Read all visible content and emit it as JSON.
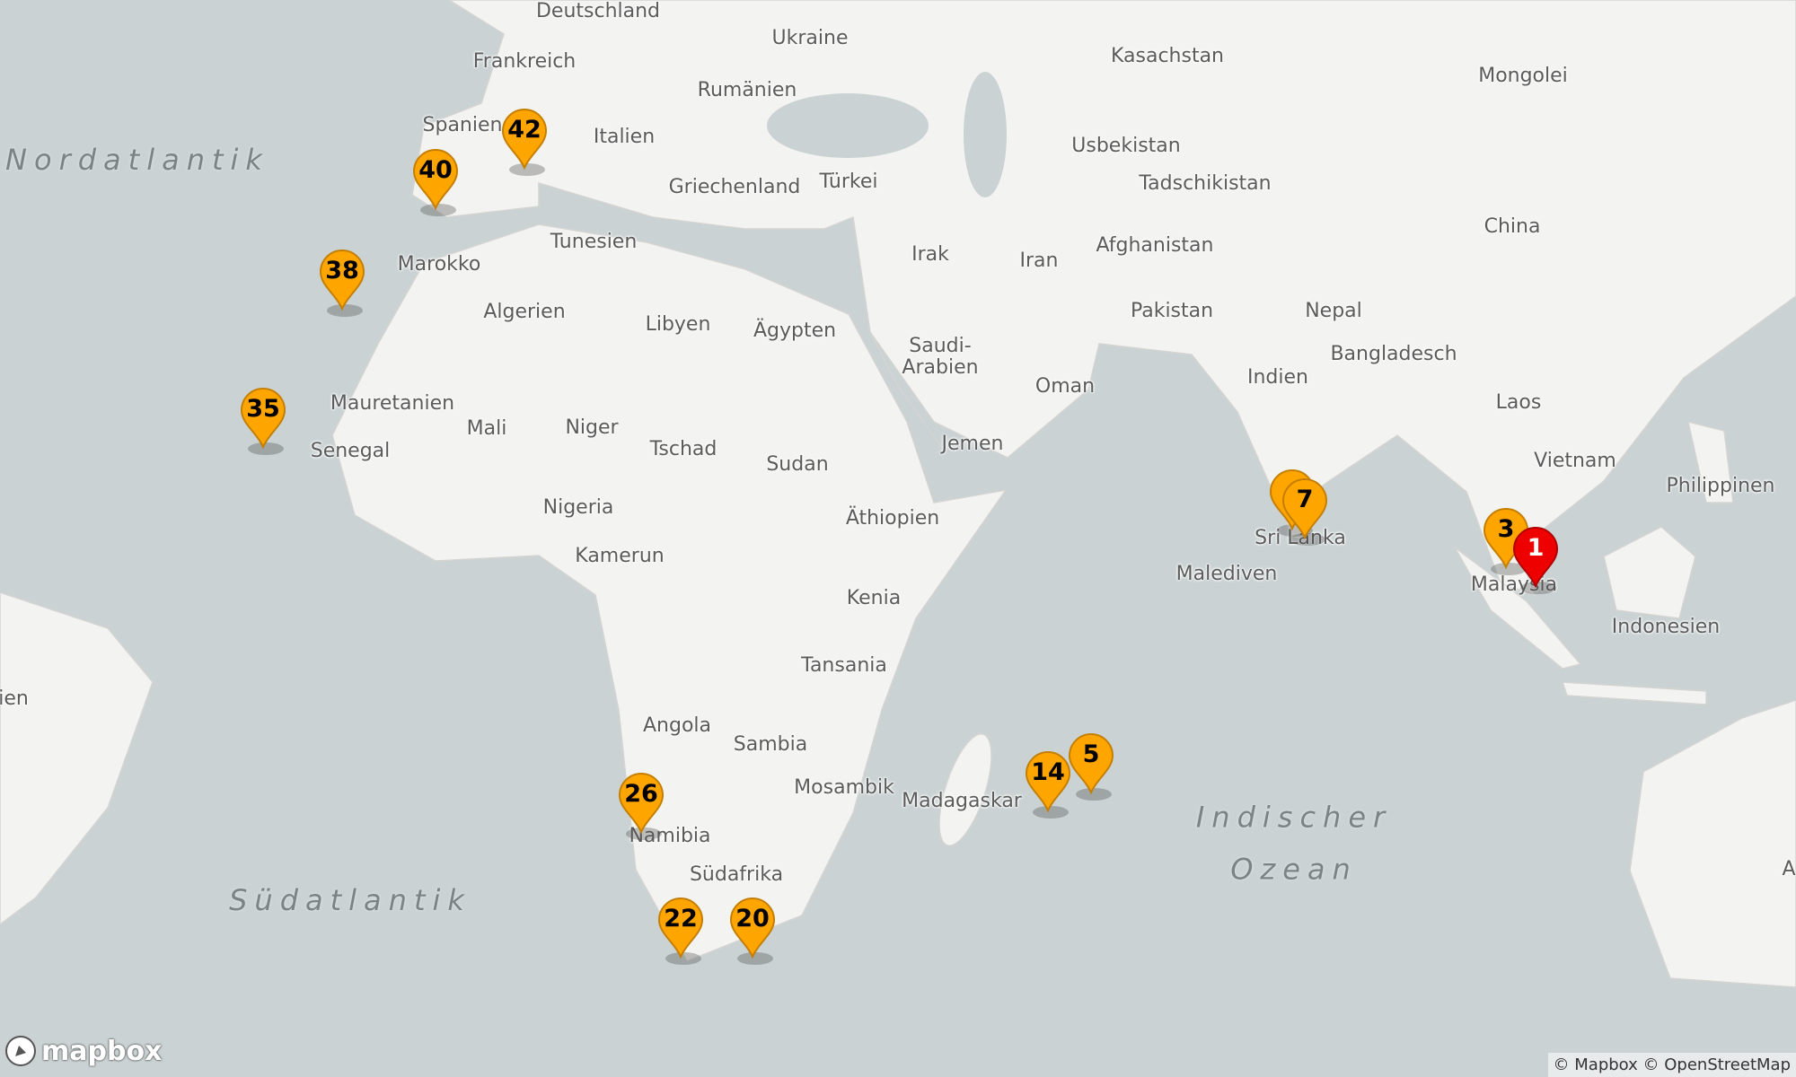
{
  "colors": {
    "water": "#cad2d3",
    "land": "#f3f3f1",
    "border": "#c4c4c4",
    "marker": "#ffa500",
    "marker_selected": "#ee0000"
  },
  "countries": [
    "Deutschland",
    "Ukraine",
    "Kasachstan",
    "Mongolei",
    "Frankreich",
    "Rumänien",
    "Italien",
    "Spanien",
    "Usbekistan",
    "Tadschikistan",
    "Griechenland",
    "Türkei",
    "China",
    "Tunesien",
    "Marokko",
    "Irak",
    "Iran",
    "Afghanistan",
    "Algerien",
    "Libyen",
    "Ägypten",
    "Pakistan",
    "Nepal",
    "Saudi-\nArabien",
    "Bangladesch",
    "Indien",
    "Oman",
    "Laos",
    "Mauretanien",
    "Mali",
    "Niger",
    "Jemen",
    "Vietnam",
    "Philippinen",
    "Senegal",
    "Tschad",
    "Sudan",
    "Nigeria",
    "Äthiopien",
    "Sri Lanka",
    "Kamerun",
    "Malaysia",
    "Malediven",
    "Kenia",
    "Indonesien",
    "Tansania",
    "ien",
    "Angola",
    "Sambia",
    "Mosambik",
    "Madagaskar",
    "Namibia",
    "Südafrika",
    "A"
  ],
  "oceans": [
    "Nordatlantik",
    "Südatlantik",
    "Indischer\nOzean"
  ],
  "markers": [
    {
      "label": "",
      "selected": false
    },
    {
      "label": "5",
      "selected": false
    },
    {
      "label": "42",
      "selected": false
    },
    {
      "label": "40",
      "selected": false
    },
    {
      "label": "38",
      "selected": false
    },
    {
      "label": "35",
      "selected": false
    },
    {
      "label": "26",
      "selected": false
    },
    {
      "label": "22",
      "selected": false
    },
    {
      "label": "20",
      "selected": false
    },
    {
      "label": "14",
      "selected": false
    },
    {
      "label": "7",
      "selected": false
    },
    {
      "label": "3",
      "selected": false
    },
    {
      "label": "1",
      "selected": true
    }
  ],
  "logo": "mapbox",
  "attribution": {
    "mapbox": "© Mapbox",
    "osm": "© OpenStreetMap"
  }
}
